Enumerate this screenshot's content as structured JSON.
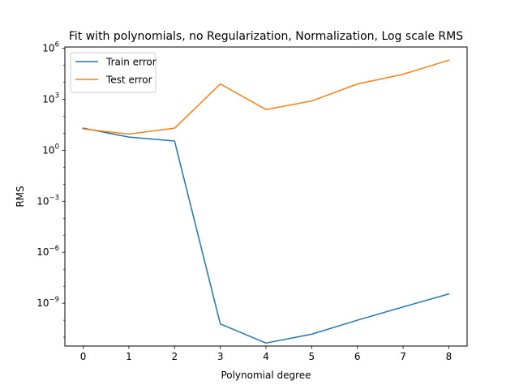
{
  "chart_data": {
    "type": "line",
    "title": "Fit with polynomials, no Regularization, Normalization, Log scale RMS",
    "xlabel": "Polynomial degree",
    "ylabel": "RMS",
    "x": [
      0,
      1,
      2,
      3,
      4,
      5,
      6,
      7,
      8
    ],
    "xlim": [
      -0.4,
      8.4
    ],
    "yscale": "log",
    "ylim": [
      3e-12,
      1200000.0
    ],
    "x_ticks": [
      0,
      1,
      2,
      3,
      4,
      5,
      6,
      7,
      8
    ],
    "y_ticks": [
      {
        "value": 1e-09,
        "base": "10",
        "exp": "−9"
      },
      {
        "value": 1e-06,
        "base": "10",
        "exp": "−6"
      },
      {
        "value": 0.001,
        "base": "10",
        "exp": "−3"
      },
      {
        "value": 1,
        "base": "10",
        "exp": "0"
      },
      {
        "value": 1000.0,
        "base": "10",
        "exp": "3"
      },
      {
        "value": 1000000.0,
        "base": "10",
        "exp": "6"
      }
    ],
    "legend_position": "top-left",
    "grid": false,
    "series": [
      {
        "name": "Train error",
        "color": "#1f77b4",
        "values": [
          20,
          6,
          3.5,
          6e-11,
          4.5e-12,
          1.5e-11,
          1e-10,
          6e-10,
          3.5e-09
        ]
      },
      {
        "name": "Test error",
        "color": "#ff7f0e",
        "values": [
          18,
          9,
          20,
          8000,
          250,
          800,
          8000,
          30000,
          200000
        ]
      }
    ]
  }
}
